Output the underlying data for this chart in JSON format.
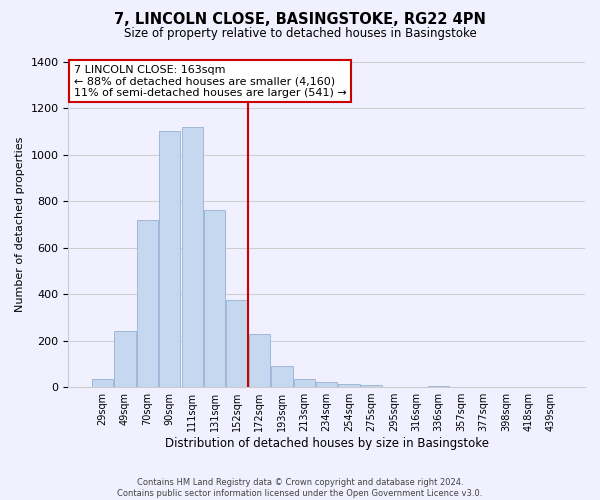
{
  "title": "7, LINCOLN CLOSE, BASINGSTOKE, RG22 4PN",
  "subtitle": "Size of property relative to detached houses in Basingstoke",
  "xlabel": "Distribution of detached houses by size in Basingstoke",
  "ylabel": "Number of detached properties",
  "footer_line1": "Contains HM Land Registry data © Crown copyright and database right 2024.",
  "footer_line2": "Contains public sector information licensed under the Open Government Licence v3.0.",
  "bar_labels": [
    "29sqm",
    "49sqm",
    "70sqm",
    "90sqm",
    "111sqm",
    "131sqm",
    "152sqm",
    "172sqm",
    "193sqm",
    "213sqm",
    "234sqm",
    "254sqm",
    "275sqm",
    "295sqm",
    "316sqm",
    "336sqm",
    "357sqm",
    "377sqm",
    "398sqm",
    "418sqm",
    "439sqm"
  ],
  "bar_heights": [
    35,
    240,
    720,
    1100,
    1120,
    760,
    375,
    230,
    90,
    35,
    20,
    15,
    10,
    0,
    0,
    5,
    0,
    0,
    0,
    0,
    0
  ],
  "bar_color": "#c5d8f0",
  "bar_edge_color": "#a0b8d8",
  "vline_x_index": 7,
  "vline_color": "#cc0000",
  "annotation_title": "7 LINCOLN CLOSE: 163sqm",
  "annotation_line1": "← 88% of detached houses are smaller (4,160)",
  "annotation_line2": "11% of semi-detached houses are larger (541) →",
  "annotation_box_color": "#ffffff",
  "annotation_box_edge_color": "#cc0000",
  "ylim": [
    0,
    1400
  ],
  "yticks": [
    0,
    200,
    400,
    600,
    800,
    1000,
    1200,
    1400
  ],
  "grid_color": "#cccccc",
  "background_color": "#f0f0ff"
}
